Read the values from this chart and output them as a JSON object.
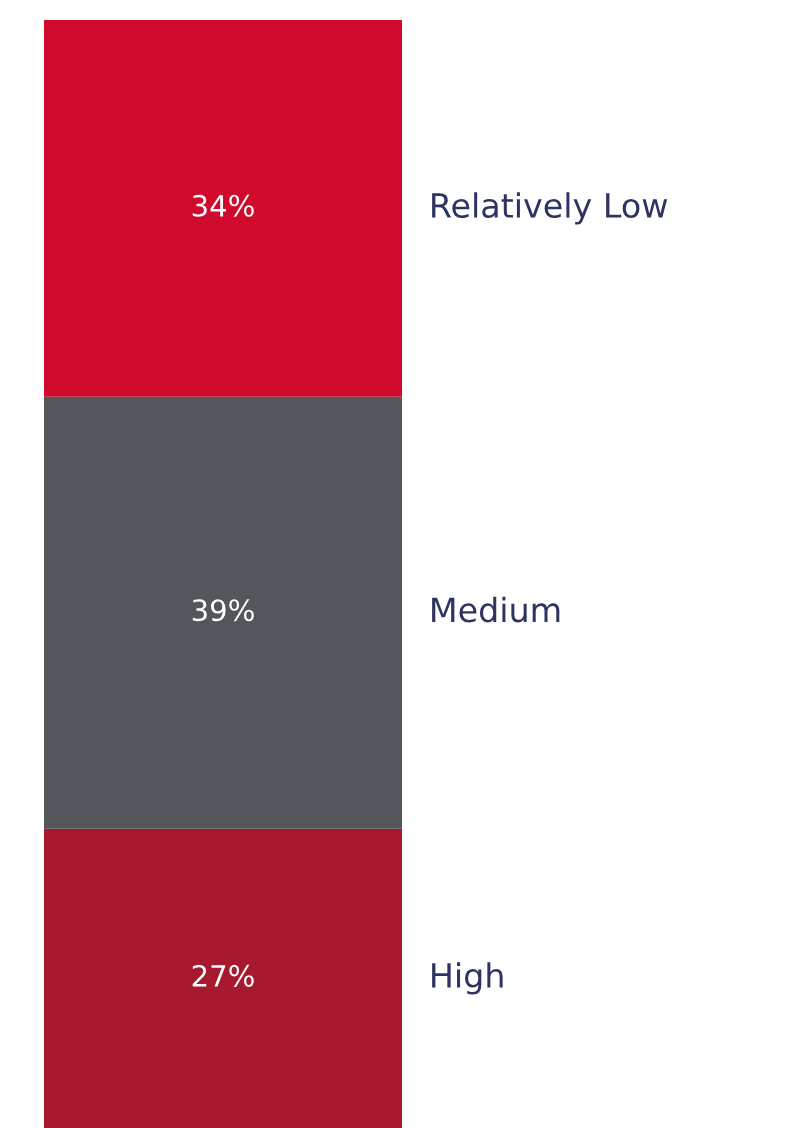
{
  "chart_data": {
    "type": "bar",
    "stacked": true,
    "categories": [
      null
    ],
    "series": [
      {
        "name": "High",
        "color": "#a6192e",
        "values": [
          27
        ],
        "value_labels": [
          "27%"
        ]
      },
      {
        "name": "Medium",
        "color": "#53565a",
        "values": [
          39
        ],
        "value_labels": [
          "39%"
        ]
      },
      {
        "name": "Relatively Low",
        "color": "#cf0a2c",
        "values": [
          34
        ],
        "value_labels": [
          "34%"
        ]
      }
    ],
    "legend": false,
    "tick_labels": false
  }
}
